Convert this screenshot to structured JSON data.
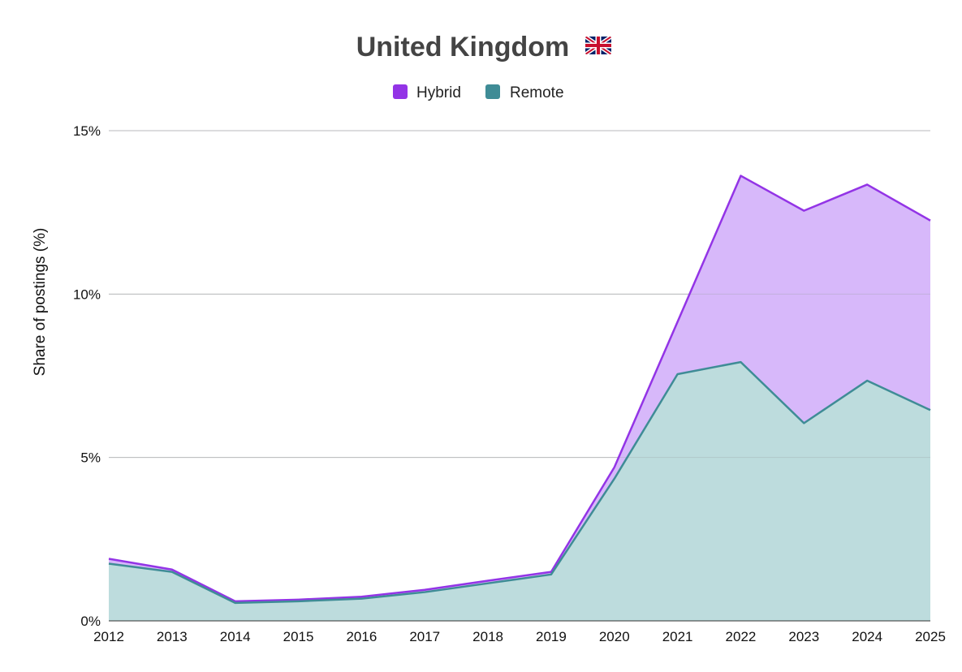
{
  "chart_data": {
    "type": "area",
    "stacked": true,
    "title": "United Kingdom",
    "title_icon": "uk-flag-icon",
    "ylabel": "Share of postings (%)",
    "xlabel": "",
    "x": [
      2012,
      2013,
      2014,
      2015,
      2016,
      2017,
      2018,
      2019,
      2020,
      2021,
      2022,
      2023,
      2024,
      2025
    ],
    "x_tick_labels": [
      "2012",
      "2013",
      "2014",
      "2015",
      "2016",
      "2017",
      "2018",
      "2019",
      "2020",
      "2021",
      "2022",
      "2023",
      "2024",
      "2025"
    ],
    "ylim": [
      0,
      15
    ],
    "y_ticks": [
      0,
      5,
      10,
      15
    ],
    "y_tick_labels": [
      "0%",
      "5%",
      "10%",
      "15%"
    ],
    "grid": true,
    "legend_position": "top-center",
    "series": [
      {
        "name": "Hybrid",
        "color": "#9334e6",
        "fill": "#d7b8fa",
        "values": [
          0.15,
          0.07,
          0.05,
          0.05,
          0.06,
          0.07,
          0.08,
          0.08,
          0.35,
          1.6,
          5.7,
          6.5,
          6.0,
          5.8
        ]
      },
      {
        "name": "Remote",
        "color": "#3f8c96",
        "fill": "#bddcdd",
        "values": [
          1.75,
          1.5,
          0.55,
          0.6,
          0.68,
          0.88,
          1.15,
          1.42,
          4.35,
          7.55,
          7.92,
          6.05,
          7.35,
          6.45
        ]
      }
    ]
  }
}
